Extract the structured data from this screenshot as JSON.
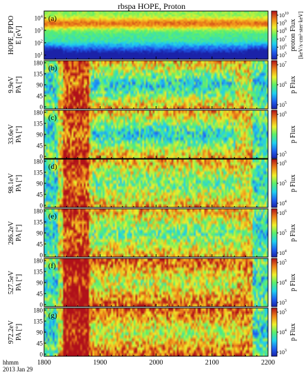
{
  "chart_data": {
    "type": "heatmap",
    "title": "rbspa HOPE, Proton",
    "time_label": [
      "hhmm",
      "2013 Jan 29"
    ],
    "x_ticks": [
      "1800",
      "1900",
      "2000",
      "2100",
      "2200"
    ],
    "xlim": [
      1800,
      2200
    ],
    "panels": [
      {
        "letter": "(a)",
        "ylabel": [
          "HOPE_FPDO",
          "E [eV]"
        ],
        "yticks": [
          "10^4",
          "10^3",
          "10^2",
          "10^1"
        ],
        "cbar_label": [
          "proton Flux",
          "[keV/s·cm²·ster·keV]"
        ],
        "cbar_ticks": [
          "10^10",
          "10^9",
          "10^8",
          "10^7",
          "10^6",
          "10^5"
        ],
        "log_scale": true
      },
      {
        "letter": "(b)",
        "ylabel": [
          "9.9eV",
          "PA [°]"
        ],
        "yticks": [
          "180",
          "135",
          "90",
          "45",
          "0"
        ],
        "cbar_label": [
          "p Flux"
        ],
        "cbar_ticks": [
          "10^7",
          "10^6",
          "10^5"
        ]
      },
      {
        "letter": "(c)",
        "ylabel": [
          "33.6eV",
          "PA [°]"
        ],
        "yticks": [
          "180",
          "135",
          "90",
          "45",
          "0"
        ],
        "cbar_label": [
          "p Flux"
        ],
        "cbar_ticks": [
          "10^6",
          "10^5"
        ]
      },
      {
        "letter": "(d)",
        "ylabel": [
          "98.1eV",
          "PA [°]"
        ],
        "yticks": [
          "180",
          "135",
          "90",
          "45",
          "0"
        ],
        "cbar_label": [
          "p Flux"
        ],
        "cbar_ticks": [
          "10^6",
          "10^5",
          "10^4"
        ]
      },
      {
        "letter": "(e)",
        "ylabel": [
          "286.2eV",
          "PA [°]"
        ],
        "yticks": [
          "180",
          "135",
          "90",
          "45",
          "0"
        ],
        "cbar_label": [
          "p Flux"
        ],
        "cbar_ticks": [
          "10^6",
          "10^5",
          "10^4"
        ]
      },
      {
        "letter": "(f)",
        "ylabel": [
          "527.5eV",
          "PA [°]"
        ],
        "yticks": [
          "180",
          "135",
          "90",
          "45",
          "0"
        ],
        "cbar_label": [
          "p Flux"
        ],
        "cbar_ticks": [
          "10^5",
          "10^4",
          "10^3"
        ]
      },
      {
        "letter": "(g)",
        "ylabel": [
          "972.2eV",
          "PA [°]"
        ],
        "yticks": [
          "180",
          "135",
          "90",
          "45",
          "0"
        ],
        "cbar_label": [
          "p Flux"
        ],
        "cbar_ticks": [
          "10^5",
          "10^4",
          "10^3"
        ]
      }
    ]
  }
}
